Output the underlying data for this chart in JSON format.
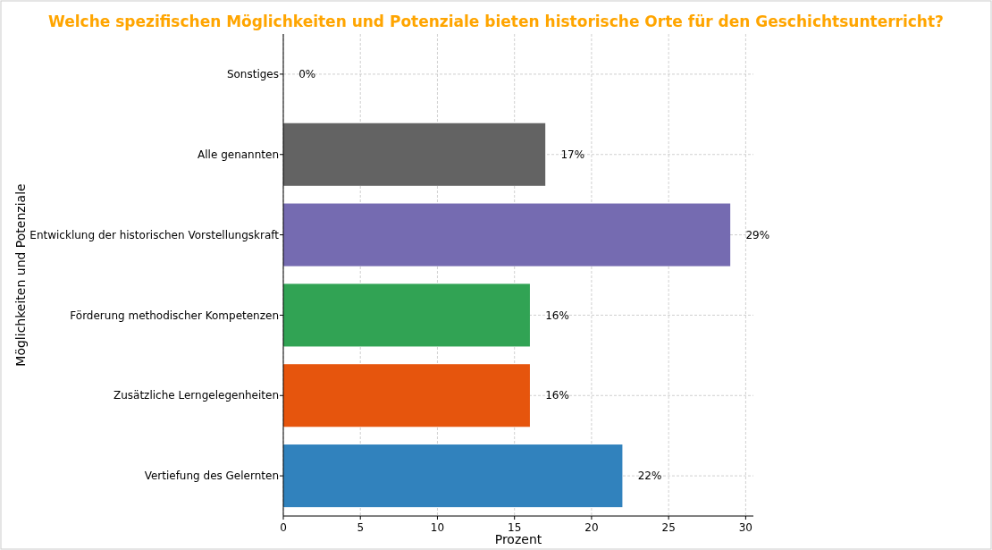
{
  "chart_data": {
    "type": "bar",
    "orientation": "horizontal",
    "title": "Welche spezifischen Möglichkeiten und Potenziale bieten historische Orte für den Geschichtsunterricht?",
    "xlabel": "Prozent",
    "ylabel": "Möglichkeiten und Potenziale",
    "categories": [
      "Sonstiges",
      "Alle genannten",
      "Entwicklung der historischen Vorstellungskraft",
      "Förderung methodischer Kompetenzen",
      "Zusätzliche Lerngelegenheiten",
      "Vertiefung des Gelernten"
    ],
    "values": [
      0,
      17,
      29,
      16,
      16,
      22
    ],
    "colors": [
      "#8c8c8c",
      "#636363",
      "#756bb1",
      "#31a354",
      "#e6550d",
      "#3182bd"
    ],
    "value_labels": [
      "0%",
      "17%",
      "29%",
      "16%",
      "16%",
      "22%"
    ],
    "xlim": [
      0,
      30.5
    ],
    "xticks": [
      0,
      5,
      10,
      15,
      20,
      25,
      30
    ],
    "grid": true
  }
}
